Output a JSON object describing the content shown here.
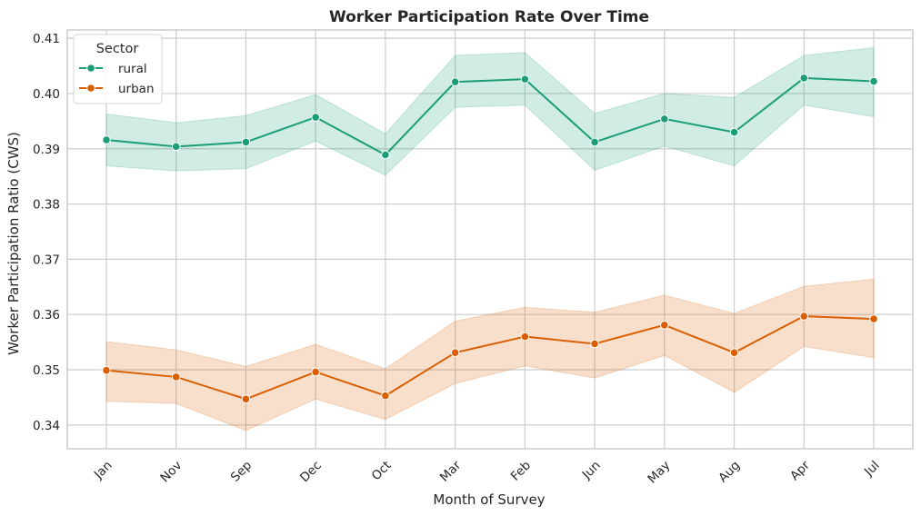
{
  "chart_data": {
    "type": "line",
    "title": "Worker Participation Rate Over Time",
    "xlabel": "Month of Survey",
    "ylabel": "Worker Participation Ratio (CWS)",
    "categories": [
      "Jan",
      "Nov",
      "Sep",
      "Dec",
      "Oct",
      "Mar",
      "Feb",
      "Jun",
      "May",
      "Aug",
      "Apr",
      "Jul"
    ],
    "ylim": [
      0.3357,
      0.4115
    ],
    "yticks": [
      0.34,
      0.35,
      0.36,
      0.37,
      0.38,
      0.39,
      0.4,
      0.41
    ],
    "ytick_labels": [
      "0.34",
      "0.35",
      "0.36",
      "0.37",
      "0.38",
      "0.39",
      "0.40",
      "0.41"
    ],
    "grid": true,
    "legend": {
      "title": "Sector",
      "placement": "top-left"
    },
    "series": [
      {
        "name": "rural",
        "color": "#1b9e77",
        "values": [
          0.3916,
          0.3904,
          0.3912,
          0.3957,
          0.3889,
          0.4021,
          0.4026,
          0.3912,
          0.3954,
          0.393,
          0.4028,
          0.4022
        ],
        "ci_low": [
          0.3869,
          0.386,
          0.3864,
          0.3914,
          0.3852,
          0.3975,
          0.3979,
          0.3861,
          0.3905,
          0.3869,
          0.3979,
          0.3958
        ],
        "ci_high": [
          0.3963,
          0.3947,
          0.396,
          0.3998,
          0.3927,
          0.4069,
          0.4074,
          0.3964,
          0.4,
          0.3993,
          0.4069,
          0.4083
        ]
      },
      {
        "name": "urban",
        "color": "#d95f02",
        "values": [
          0.3499,
          0.3487,
          0.3447,
          0.3496,
          0.3453,
          0.3531,
          0.356,
          0.3547,
          0.3581,
          0.3531,
          0.3597,
          0.3592
        ],
        "ci_low": [
          0.3443,
          0.3439,
          0.339,
          0.3447,
          0.341,
          0.3475,
          0.3507,
          0.3485,
          0.3526,
          0.3459,
          0.3542,
          0.3522
        ],
        "ci_high": [
          0.3551,
          0.3536,
          0.3506,
          0.3546,
          0.3502,
          0.3588,
          0.3613,
          0.3604,
          0.3635,
          0.3602,
          0.3651,
          0.3664
        ]
      }
    ]
  }
}
